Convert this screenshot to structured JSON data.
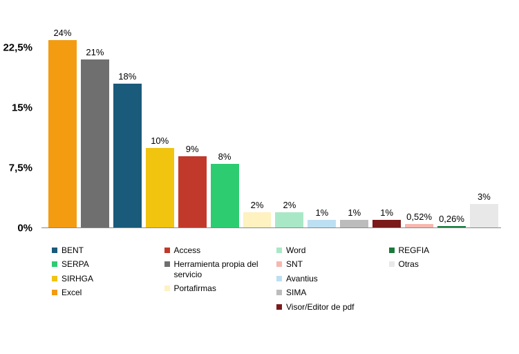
{
  "chart": {
    "type": "bar",
    "background_color": "#ffffff",
    "baseline_color": "#888888",
    "axis_label_fontsize": 15,
    "axis_label_fontweight": "bold",
    "axis_label_color": "#000000",
    "bar_label_fontsize": 13,
    "bar_label_color": "#000000",
    "legend_fontsize": 12,
    "legend_color": "#000000",
    "ylim": [
      0,
      25
    ],
    "y_ticks": [
      {
        "value": 0,
        "label": "0%"
      },
      {
        "value": 7.5,
        "label": "7,5%"
      },
      {
        "value": 15,
        "label": "15%"
      },
      {
        "value": 22.5,
        "label": "22,5%"
      }
    ],
    "bars": [
      {
        "value": 24,
        "label": "24%",
        "color": "#f39c12"
      },
      {
        "value": 21,
        "label": "21%",
        "color": "#6f6f6f"
      },
      {
        "value": 18,
        "label": "18%",
        "color": "#1a5a7a"
      },
      {
        "value": 10,
        "label": "10%",
        "color": "#f1c40f"
      },
      {
        "value": 9,
        "label": "9%",
        "color": "#c0392b"
      },
      {
        "value": 8,
        "label": "8%",
        "color": "#2ecc71"
      },
      {
        "value": 2,
        "label": "2%",
        "color": "#fdf2c0"
      },
      {
        "value": 2,
        "label": "2%",
        "color": "#a9e8c7"
      },
      {
        "value": 1,
        "label": "1%",
        "color": "#bcdff2"
      },
      {
        "value": 1,
        "label": "1%",
        "color": "#bcbcbc"
      },
      {
        "value": 1,
        "label": "1%",
        "color": "#7a1a1a"
      },
      {
        "value": 0.52,
        "label": "0,52%",
        "color": "#f7b7b0"
      },
      {
        "value": 0.26,
        "label": "0,26%",
        "color": "#1a7a3a"
      },
      {
        "value": 3,
        "label": "3%",
        "color": "#e8e8e8"
      }
    ],
    "legend_columns": [
      [
        {
          "label": "BENT",
          "color": "#1a5a7a"
        },
        {
          "label": "SERPA",
          "color": "#2ecc71"
        },
        {
          "label": "SIRHGA",
          "color": "#f1c40f"
        },
        {
          "label": "Excel",
          "color": "#f39c12"
        }
      ],
      [
        {
          "label": "Access",
          "color": "#c0392b"
        },
        {
          "label": "Herramienta propia del servicio",
          "color": "#6f6f6f"
        },
        {
          "label": "Portafirmas",
          "color": "#fdf2c0"
        }
      ],
      [
        {
          "label": "Word",
          "color": "#a9e8c7"
        },
        {
          "label": "SNT",
          "color": "#f7b7b0"
        },
        {
          "label": "Avantius",
          "color": "#bcdff2"
        },
        {
          "label": "SIMA",
          "color": "#bcbcbc"
        },
        {
          "label": "Visor/Editor de pdf",
          "color": "#7a1a1a"
        }
      ],
      [
        {
          "label": "REGFIA",
          "color": "#1a7a3a"
        },
        {
          "label": "Otras",
          "color": "#e8e8e8"
        }
      ]
    ]
  }
}
